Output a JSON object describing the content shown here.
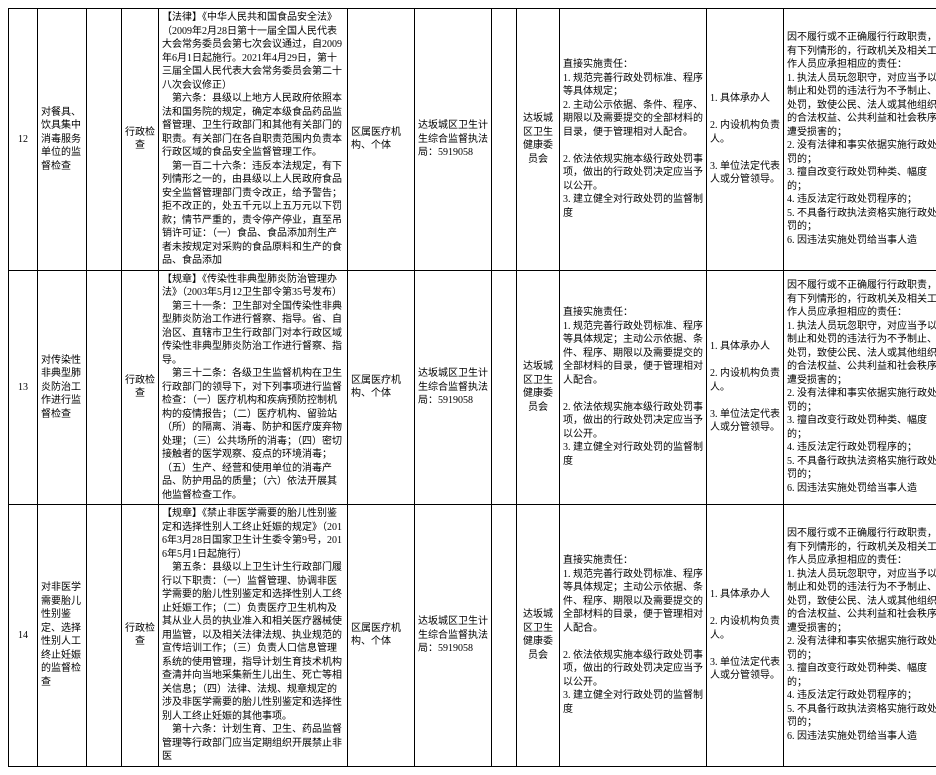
{
  "table": {
    "background_color": "#ffffff",
    "border_color": "#000000",
    "font_family": "SimSun",
    "font_size": 10,
    "rows": [
      {
        "index": "12",
        "name": "对餐具、饮具集中消毒服务单位的监督检查",
        "type": "行政检查",
        "law": "【法律】《中华人民共和国食品安全法》（2009年2月28日第十一届全国人民代表大会常务委员会第七次会议通过，自2009年6月1日起施行。2021年4月29日，第十三届全国人民代表大会常务委员会第二十八次会议修正）\n    第六条：县级以上地方人民政府依照本法和国务院的规定，确定本级食品药品监督管理、卫生行政部门和其他有关部门的职责。有关部门在各自职责范围内负责本行政区域的食品安全监督管理工作。\n    第一百二十六条：违反本法规定，有下列情形之一的，由县级以上人民政府食品安全监督管理部门责令改正，给予警告；拒不改正的，处五千元以上五万元以下罚款；情节严重的，责令停产停业，直至吊销许可证：（一）食品、食品添加剂生产者未按规定对采购的食品原料和生产的食品、食品添加",
        "org": "区属医疗机构、个体",
        "agency": "达坂城区卫生计生综合监督执法局：5919058",
        "region": "达坂城区卫生健康委员会",
        "duty": "直接实施责任：\n1. 规范完善行政处罚标准、程序等具体规定；\n2. 主动公示依据、条件、程序、期限以及需要提交的全部材料的目录，便于管理相对人配合。\n\n2. 依法依规实施本级行政处罚事项，做出的行政处罚决定应当予以公开。\n3. 建立健全对行政处罚的监督制度",
        "person": "1. 具体承办人\n\n2. 内设机构负责人。\n\n3. 单位法定代表人或分管领导。",
        "accountability": "因不履行或不正确履行行政职责，有下列情形的，行政机关及相关工作人员应承担相应的责任：\n1. 执法人员玩忽职守，对应当予以制止和处罚的违法行为不予制止、处罚，致使公民、法人或其他组织的合法权益、公共利益和社会秩序遭受损害的；\n2. 没有法律和事实依据实施行政处罚的；\n3. 擅自改变行政处罚种类、幅度的；\n4. 违反法定行政处罚程序的；\n5. 不具备行政执法资格实施行政处罚的；\n6. 因违法实施处罚给当事人造"
      },
      {
        "index": "13",
        "name": "对传染性非典型肺炎防治工作进行监督检查",
        "type": "行政检查",
        "law": "【规章】《传染性非典型肺炎防治管理办法》（2003年5月12卫生部令第35号发布）\n    第三十一条：卫生部对全国传染性非典型肺炎防治工作进行督察、指导。省、自治区、直辖市卫生行政部门对本行政区域传染性非典型肺炎防治工作进行督察、指导。\n    第三十二条：各级卫生监督机构在卫生行政部门的领导下，对下列事项进行监督检查：（一）医疗机构和疾病预防控制机构的疫情报告；（二）医疗机构、留验站（所）的隔离、消毒、防护和医疗废弃物处理；（三）公共场所的消毒；（四）密切接触者的医学观察、疫点的环境消毒；（五）生产、经营和使用单位的消毒产品、防护用品的质量；（六）依法开展其他监督检查工作。",
        "org": "区属医疗机构、个体",
        "agency": "达坂城区卫生计生综合监督执法局：5919058",
        "region": "达坂城区卫生健康委员会",
        "duty": "直接实施责任：\n1. 规范完善行政处罚标准、程序等具体规定；主动公示依据、条件、程序、期限以及需要提交的全部材料的目录，便于管理相对人配合。\n\n2. 依法依规实施本级行政处罚事项，做出的行政处罚决定应当予以公开。\n3. 建立健全对行政处罚的监督制度",
        "person": "1. 具体承办人\n\n2. 内设机构负责人。\n\n3. 单位法定代表人或分管领导。",
        "accountability": "因不履行或不正确履行行政职责，有下列情形的，行政机关及相关工作人员应承担相应的责任：\n1. 执法人员玩忽职守，对应当予以制止和处罚的违法行为不予制止、处罚，致使公民、法人或其他组织的合法权益、公共利益和社会秩序遭受损害的；\n2. 没有法律和事实依据实施行政处罚的；\n3. 擅自改变行政处罚种类、幅度的；\n4. 违反法定行政处罚程序的；\n5. 不具备行政执法资格实施行政处罚的；\n6. 因违法实施处罚给当事人造"
      },
      {
        "index": "14",
        "name": "对非医学需要胎儿性别鉴定、选择性别人工终止妊娠的监督检查",
        "type": "行政检查",
        "law": "【规章】《禁止非医学需要的胎儿性别鉴定和选择性别人工终止妊娠的规定》（2016年3月28日国家卫生计生委令第9号，2016年5月1日起施行）\n    第五条：县级以上卫生计生行政部门履行以下职责：（一）监督管理、协调非医学需要的胎儿性别鉴定和选择性别人工终止妊娠工作；（二）负责医疗卫生机构及其从业人员的执业准入和相关医疗器械使用监管，以及相关法律法规、执业规范的宣传培训工作；（三）负责人口信息管理系统的使用管理，指导计划生育技术机构查清并向当地采集新生儿出生、死亡等相关信息；（四）法律、法规、规章规定的涉及非医学需要的胎儿性别鉴定和选择性别人工终止妊娠的其他事项。\n    第十六条：计划生育、卫生、药品监督管理等行政部门应当定期组织开展禁止非医",
        "org": "区属医疗机构、个体",
        "agency": "达坂城区卫生计生综合监督执法局：5919058",
        "region": "达坂城区卫生健康委员会",
        "duty": "直接实施责任：\n1. 规范完善行政处罚标准、程序等具体规定；主动公示依据、条件、程序、期限以及需要提交的全部材料的目录，便于管理相对人配合。\n\n2. 依法依规实施本级行政处罚事项，做出的行政处罚决定应当予以公开。\n3. 建立健全对行政处罚的监督制度",
        "person": "1. 具体承办人\n\n2. 内设机构负责人。\n\n3. 单位法定代表人或分管领导。",
        "accountability": "因不履行或不正确履行行政职责，有下列情形的，行政机关及相关工作人员应承担相应的责任：\n1. 执法人员玩忽职守，对应当予以制止和处罚的违法行为不予制止、处罚，致使公民、法人或其他组织的合法权益、公共利益和社会秩序遭受损害的；\n2. 没有法律和事实依据实施行政处罚的；\n3. 擅自改变行政处罚种类、幅度的；\n4. 违反法定行政处罚程序的；\n5. 不具备行政执法资格实施行政处罚的；\n6. 因违法实施处罚给当事人造"
      }
    ]
  }
}
